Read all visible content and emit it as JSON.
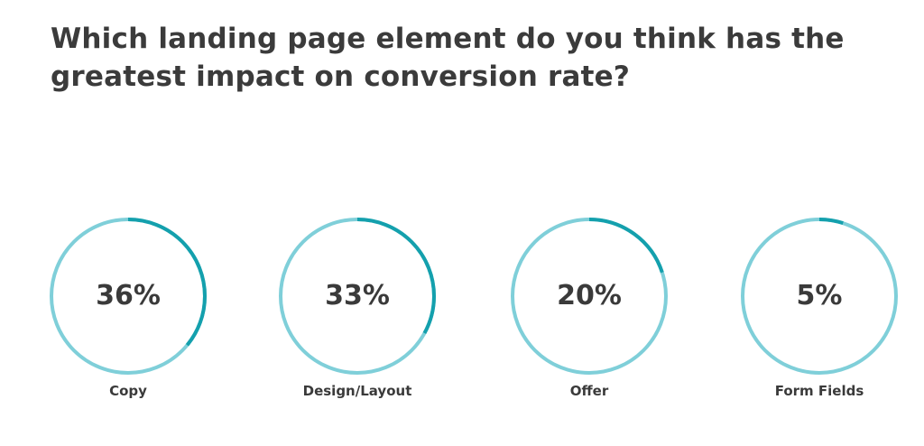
{
  "title": {
    "line1": "Which landing page element do you think has the",
    "line2": "greatest impact on conversion rate?"
  },
  "colors": {
    "track": "#7fcfd9",
    "fill": "#14a0ad",
    "text": "#3a3a3a"
  },
  "chart_data": {
    "type": "pie",
    "style": "donut-rings",
    "title": "Which landing page element do you think has the greatest impact on conversion rate?",
    "items": [
      {
        "label": "Copy",
        "value": 36,
        "display": "36%"
      },
      {
        "label": "Design/Layout",
        "value": 33,
        "display": "33%"
      },
      {
        "label": "Offer",
        "value": 20,
        "display": "20%"
      },
      {
        "label": "Form Fields",
        "value": 5,
        "display": "5%"
      }
    ]
  }
}
